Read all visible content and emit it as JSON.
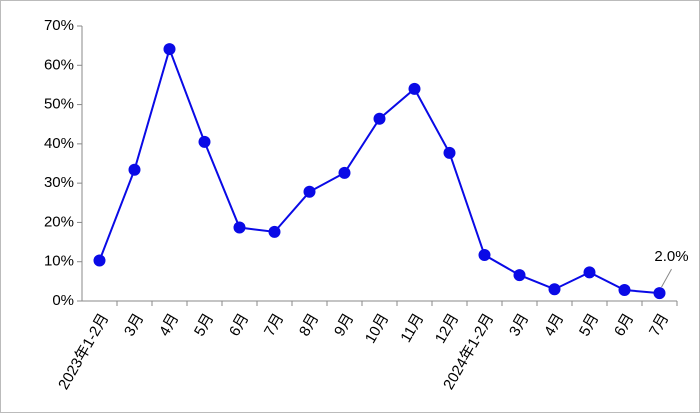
{
  "chart_data": {
    "type": "line",
    "categories": [
      "2023年1-2月",
      "3月",
      "4月",
      "5月",
      "6月",
      "7月",
      "8月",
      "9月",
      "10月",
      "11月",
      "12月",
      "2024年1-2月",
      "3月",
      "4月",
      "5月",
      "6月",
      "7月"
    ],
    "series": [
      {
        "color": "#0a0ae6",
        "values": [
          10.3,
          33.4,
          64.1,
          40.5,
          18.7,
          17.6,
          27.8,
          32.6,
          46.4,
          54.0,
          37.7,
          11.7,
          6.6,
          3.0,
          7.3,
          2.8,
          2.0
        ],
        "value_labels": [
          null,
          null,
          null,
          null,
          null,
          null,
          null,
          null,
          null,
          null,
          null,
          null,
          null,
          null,
          null,
          null,
          "2.0%"
        ]
      }
    ],
    "ylim": [
      0,
      70
    ],
    "yticks": [
      {
        "value": 0,
        "label": "0%"
      },
      {
        "value": 10,
        "label": "10%"
      },
      {
        "value": 20,
        "label": "20%"
      },
      {
        "value": 30,
        "label": "30%"
      },
      {
        "value": 40,
        "label": "40%"
      },
      {
        "value": 50,
        "label": "50%"
      },
      {
        "value": 60,
        "label": "60%"
      },
      {
        "value": 70,
        "label": "70%"
      }
    ],
    "grid": false
  }
}
